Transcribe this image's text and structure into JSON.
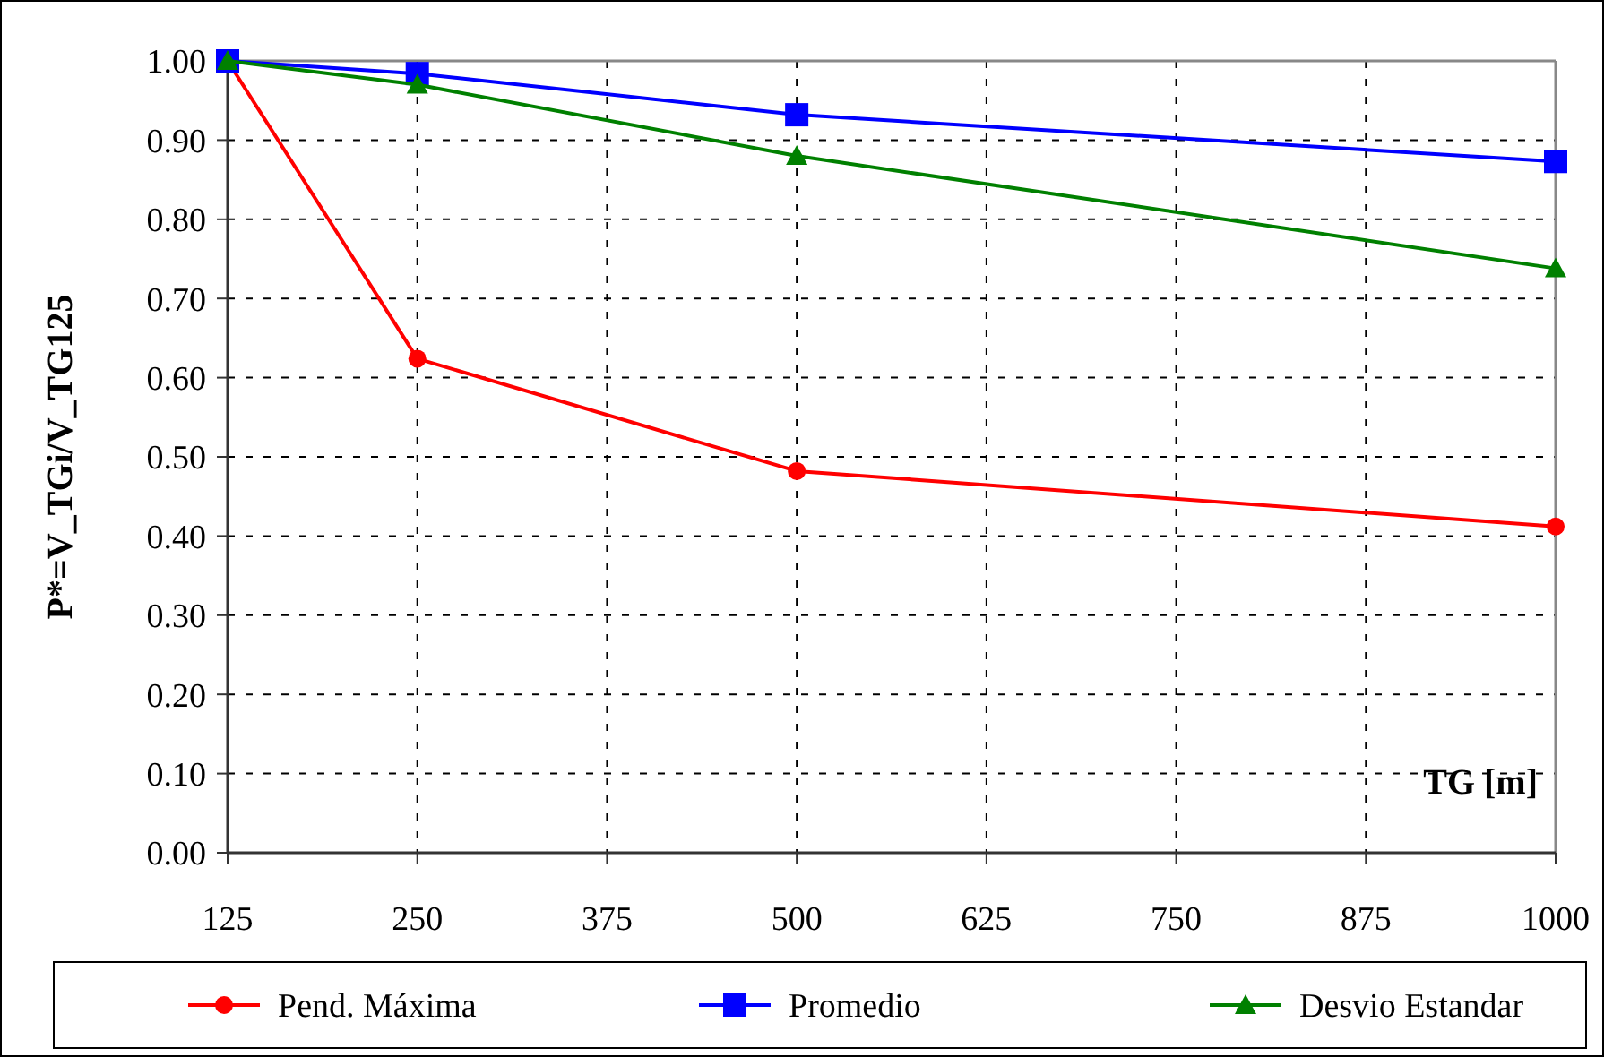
{
  "chart_data": {
    "type": "line",
    "ylabel": "P*=V_TGi/V_TG125",
    "xlabel": "TG [m]",
    "x": [
      125,
      250,
      500,
      1000
    ],
    "xlim": [
      125,
      1000
    ],
    "xticks": [
      125,
      250,
      375,
      500,
      625,
      750,
      875,
      1000
    ],
    "ylim": [
      0,
      1
    ],
    "yticks": [
      {
        "value": 0,
        "label": "0.00"
      },
      {
        "value": 0.1,
        "label": "0.10"
      },
      {
        "value": 0.2,
        "label": "0.20"
      },
      {
        "value": 0.3,
        "label": "0.30"
      },
      {
        "value": 0.4,
        "label": "0.40"
      },
      {
        "value": 0.5,
        "label": "0.50"
      },
      {
        "value": 0.6,
        "label": "0.60"
      },
      {
        "value": 0.7,
        "label": "0.70"
      },
      {
        "value": 0.8,
        "label": "0.80"
      },
      {
        "value": 0.9,
        "label": "0.90"
      },
      {
        "value": 1,
        "label": "1.00"
      }
    ],
    "grid": true,
    "legend": "bottom",
    "series": [
      {
        "name": "Pend. Máxima",
        "color": "#ff0000",
        "marker": "circle",
        "values": [
          1,
          0.624,
          0.482,
          0.412
        ]
      },
      {
        "name": "Promedio",
        "color": "#0000ff",
        "marker": "square",
        "values": [
          1,
          0.984,
          0.932,
          0.873
        ]
      },
      {
        "name": "Desvio Estandar",
        "color": "#008000",
        "marker": "triangle",
        "values": [
          1,
          0.97,
          0.88,
          0.738
        ]
      }
    ]
  }
}
